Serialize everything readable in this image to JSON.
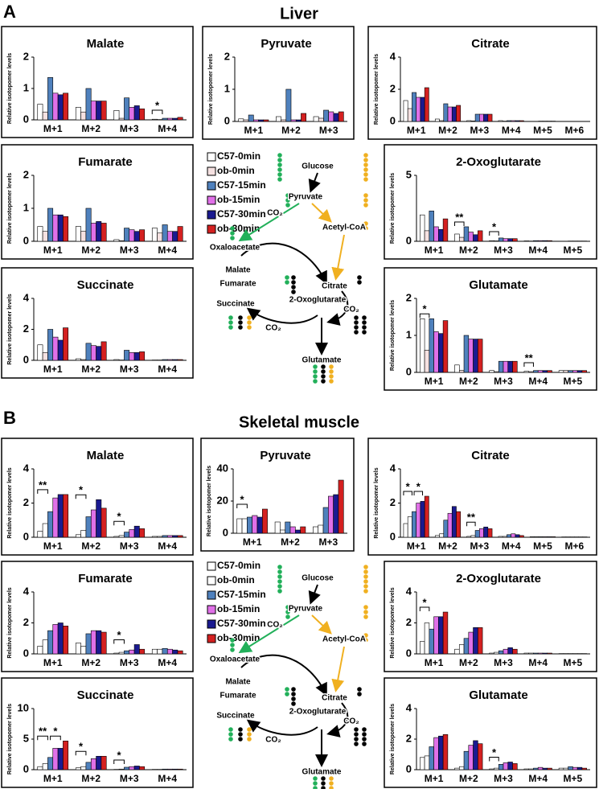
{
  "panels": [
    {
      "label": "A",
      "title": "Liver",
      "legend": [
        {
          "name": "C57-0min",
          "color": "#ffffff"
        },
        {
          "name": "ob-0min",
          "color": "#f5e1e1"
        },
        {
          "name": "C57-15min",
          "color": "#4f81bd"
        },
        {
          "name": "ob-15min",
          "color": "#e070e8"
        },
        {
          "name": "C57-30min",
          "color": "#1a1a90"
        },
        {
          "name": "ob-30min",
          "color": "#d42020"
        }
      ],
      "pathway": [
        "Glucose",
        "Pyruvate",
        "CO₂",
        "Acetyl-CoA",
        "Oxaloacetate",
        "Malate",
        "Citrate",
        "Fumarate",
        "CO₂",
        "2-Oxoglutarate",
        "Succinate",
        "CO₂",
        "Glutamate"
      ]
    },
    {
      "label": "B",
      "title": "Skeletal muscle",
      "legend": [
        {
          "name": "C57-0min",
          "color": "#ffffff"
        },
        {
          "name": "ob-0min",
          "color": "#ffffff"
        },
        {
          "name": "C57-15min",
          "color": "#4f81bd"
        },
        {
          "name": "ob-15min",
          "color": "#e070e8"
        },
        {
          "name": "C57-30min",
          "color": "#1a1a90"
        },
        {
          "name": "ob-30min",
          "color": "#d42020"
        }
      ],
      "pathway": [
        "Glucose",
        "Pyruvate",
        "CO₂",
        "Acetyl-CoA",
        "Oxaloacetate",
        "Malate",
        "Citrate",
        "Fumarate",
        "CO₂",
        "2-Oxoglutarate",
        "Succinate",
        "CO₂",
        "Glutamate"
      ]
    }
  ],
  "chart_data": [
    {
      "type": "bar",
      "title": "Malate",
      "y_label": "Relative isotopomer levels",
      "categories": [
        "M+1",
        "M+2",
        "M+3",
        "M+4"
      ],
      "ylim": [
        0,
        2
      ],
      "yticks": [
        0,
        1,
        2
      ],
      "series": [
        {
          "values": [
            0.5,
            0.4,
            0.3,
            0.02
          ]
        },
        {
          "values": [
            0.25,
            0.25,
            0.05,
            0.01
          ]
        },
        {
          "values": [
            1.35,
            1.0,
            0.7,
            0.05
          ]
        },
        {
          "values": [
            0.85,
            0.6,
            0.4,
            0.05
          ]
        },
        {
          "values": [
            0.8,
            0.6,
            0.45,
            0.05
          ]
        },
        {
          "values": [
            0.85,
            0.6,
            0.35,
            0.08
          ]
        }
      ],
      "annotations": [
        {
          "text": "*",
          "category": "M+4"
        }
      ]
    },
    {
      "type": "bar",
      "title": "Pyruvate",
      "y_label": "Relative isotopomer levels",
      "categories": [
        "M+1",
        "M+2",
        "M+3"
      ],
      "ylim": [
        0,
        2
      ],
      "yticks": [
        0,
        1,
        2
      ],
      "series": [
        {
          "values": [
            0.08,
            0.15,
            0.15
          ]
        },
        {
          "values": [
            0.05,
            0.05,
            0.1
          ]
        },
        {
          "values": [
            0.2,
            1.0,
            0.35
          ]
        },
        {
          "values": [
            0.05,
            0.05,
            0.3
          ]
        },
        {
          "values": [
            0.05,
            0.05,
            0.25
          ]
        },
        {
          "values": [
            0.05,
            0.25,
            0.3
          ]
        }
      ],
      "annotations": []
    },
    {
      "type": "bar",
      "title": "Citrate",
      "y_label": "Relative isotopomer levels",
      "categories": [
        "M+1",
        "M+2",
        "M+3",
        "M+4",
        "M+5",
        "M+6"
      ],
      "ylim": [
        0,
        4
      ],
      "yticks": [
        0,
        2,
        4
      ],
      "series": [
        {
          "values": [
            1.3,
            0.15,
            0.05,
            0.05,
            0.01,
            0.01
          ]
        },
        {
          "values": [
            0.8,
            0.05,
            0.03,
            0.02,
            0.01,
            0.01
          ]
        },
        {
          "values": [
            1.8,
            1.1,
            0.45,
            0.05,
            0.02,
            0.01
          ]
        },
        {
          "values": [
            1.5,
            0.9,
            0.45,
            0.05,
            0.02,
            0.01
          ]
        },
        {
          "values": [
            1.5,
            0.9,
            0.45,
            0.05,
            0.02,
            0.01
          ]
        },
        {
          "values": [
            2.1,
            1.0,
            0.45,
            0.05,
            0.02,
            0.01
          ]
        }
      ],
      "annotations": []
    },
    {
      "type": "bar",
      "title": "Fumarate",
      "y_label": "Relative isotopomer levels",
      "categories": [
        "M+1",
        "M+2",
        "M+3",
        "M+4"
      ],
      "ylim": [
        0,
        2
      ],
      "yticks": [
        0,
        1,
        2
      ],
      "series": [
        {
          "values": [
            0.45,
            0.45,
            0.05,
            0.4
          ]
        },
        {
          "values": [
            0.3,
            0.3,
            0.02,
            0.25
          ]
        },
        {
          "values": [
            1.0,
            1.0,
            0.4,
            0.5
          ]
        },
        {
          "values": [
            0.8,
            0.55,
            0.35,
            0.3
          ]
        },
        {
          "values": [
            0.8,
            0.6,
            0.3,
            0.3
          ]
        },
        {
          "values": [
            0.75,
            0.55,
            0.35,
            0.45
          ]
        }
      ],
      "annotations": []
    },
    {
      "type": "bar",
      "title": "2-Oxoglutarate",
      "y_label": "Relative isotopomer levels",
      "categories": [
        "M+1",
        "M+2",
        "M+3",
        "M+4",
        "M+5"
      ],
      "ylim": [
        0,
        5
      ],
      "yticks": [
        0,
        5
      ],
      "series": [
        {
          "values": [
            2.0,
            0.55,
            0.05,
            0.03,
            0.01
          ]
        },
        {
          "values": [
            0.8,
            0.3,
            0.03,
            0.02,
            0.01
          ]
        },
        {
          "values": [
            2.3,
            1.1,
            0.25,
            0.05,
            0.02
          ]
        },
        {
          "values": [
            1.1,
            0.7,
            0.2,
            0.05,
            0.02
          ]
        },
        {
          "values": [
            0.9,
            0.5,
            0.2,
            0.05,
            0.02
          ]
        },
        {
          "values": [
            1.7,
            0.8,
            0.2,
            0.05,
            0.02
          ]
        }
      ],
      "annotations": [
        {
          "text": "**",
          "category": "M+2"
        },
        {
          "text": "*",
          "category": "M+3"
        }
      ]
    },
    {
      "type": "bar",
      "title": "Succinate",
      "y_label": "Relative isotopomer levels",
      "categories": [
        "M+1",
        "M+2",
        "M+3",
        "M+4"
      ],
      "ylim": [
        0,
        4
      ],
      "yticks": [
        0,
        2,
        4
      ],
      "series": [
        {
          "values": [
            1.0,
            0.1,
            0.05,
            0.02
          ]
        },
        {
          "values": [
            0.5,
            0.05,
            0.02,
            0.02
          ]
        },
        {
          "values": [
            2.0,
            1.1,
            0.65,
            0.05
          ]
        },
        {
          "values": [
            1.5,
            0.95,
            0.5,
            0.05
          ]
        },
        {
          "values": [
            1.3,
            0.9,
            0.5,
            0.05
          ]
        },
        {
          "values": [
            2.1,
            1.2,
            0.55,
            0.05
          ]
        }
      ],
      "annotations": []
    },
    {
      "type": "bar",
      "title": "Glutamate",
      "y_label": "Relative isotopomer levels",
      "categories": [
        "M+1",
        "M+2",
        "M+3",
        "M+4",
        "M+5"
      ],
      "ylim": [
        0,
        2
      ],
      "yticks": [
        0,
        1,
        2
      ],
      "series": [
        {
          "values": [
            1.45,
            0.2,
            0.05,
            0.03,
            0.05
          ]
        },
        {
          "values": [
            0.6,
            0.05,
            0.02,
            0.02,
            0.05
          ]
        },
        {
          "values": [
            1.45,
            1.0,
            0.3,
            0.05,
            0.05
          ]
        },
        {
          "values": [
            1.1,
            0.9,
            0.3,
            0.05,
            0.05
          ]
        },
        {
          "values": [
            1.05,
            0.9,
            0.3,
            0.05,
            0.05
          ]
        },
        {
          "values": [
            1.4,
            0.9,
            0.3,
            0.05,
            0.05
          ]
        }
      ],
      "annotations": [
        {
          "text": "*",
          "category": "M+1"
        },
        {
          "text": "**",
          "category": "M+4"
        }
      ]
    },
    {
      "type": "bar",
      "title": "Malate",
      "y_label": "Relative isotopomer levels",
      "categories": [
        "M+1",
        "M+2",
        "M+3",
        "M+4"
      ],
      "ylim": [
        0,
        4
      ],
      "yticks": [
        0,
        2,
        4
      ],
      "series": [
        {
          "values": [
            0.35,
            0.15,
            0.05,
            0.05
          ]
        },
        {
          "values": [
            0.8,
            0.4,
            0.1,
            0.05
          ]
        },
        {
          "values": [
            1.5,
            1.2,
            0.3,
            0.1
          ]
        },
        {
          "values": [
            2.3,
            1.6,
            0.45,
            0.1
          ]
        },
        {
          "values": [
            2.5,
            2.2,
            0.65,
            0.1
          ]
        },
        {
          "values": [
            2.5,
            1.7,
            0.5,
            0.1
          ]
        }
      ],
      "annotations": [
        {
          "text": "**",
          "category": "M+1"
        },
        {
          "text": "*",
          "category": "M+2"
        },
        {
          "text": "*",
          "category": "M+3"
        }
      ]
    },
    {
      "type": "bar",
      "title": "Pyruvate",
      "y_label": "Relative isotopomer levels",
      "categories": [
        "M+1",
        "M+2",
        "M+3"
      ],
      "ylim": [
        0,
        40
      ],
      "yticks": [
        0,
        20,
        40
      ],
      "series": [
        {
          "values": [
            9,
            7,
            4
          ]
        },
        {
          "values": [
            9,
            2,
            5
          ]
        },
        {
          "values": [
            10,
            7,
            16
          ]
        },
        {
          "values": [
            11,
            4,
            23
          ]
        },
        {
          "values": [
            10,
            2,
            24
          ]
        },
        {
          "values": [
            15,
            4,
            33
          ]
        }
      ],
      "annotations": [
        {
          "text": "*",
          "category": "M+1"
        }
      ]
    },
    {
      "type": "bar",
      "title": "Citrate",
      "y_label": "Relative isotopomer levels",
      "categories": [
        "M+1",
        "M+2",
        "M+3",
        "M+4",
        "M+5",
        "M+6"
      ],
      "ylim": [
        0,
        4
      ],
      "yticks": [
        0,
        2,
        4
      ],
      "series": [
        {
          "values": [
            0.8,
            0.1,
            0.05,
            0.05,
            0.03,
            0.02
          ]
        },
        {
          "values": [
            1.2,
            0.2,
            0.1,
            0.05,
            0.03,
            0.02
          ]
        },
        {
          "values": [
            1.5,
            1.0,
            0.4,
            0.15,
            0.03,
            0.02
          ]
        },
        {
          "values": [
            2.0,
            1.4,
            0.5,
            0.2,
            0.03,
            0.02
          ]
        },
        {
          "values": [
            2.1,
            1.8,
            0.6,
            0.15,
            0.03,
            0.02
          ]
        },
        {
          "values": [
            2.4,
            1.5,
            0.5,
            0.1,
            0.03,
            0.02
          ]
        }
      ],
      "annotations": [
        {
          "text": "*",
          "category": "M+1"
        },
        {
          "text": "*",
          "category": "M+1"
        },
        {
          "text": "**",
          "category": "M+3"
        }
      ]
    },
    {
      "type": "bar",
      "title": "Fumarate",
      "y_label": "Relative isotopomer levels",
      "categories": [
        "M+1",
        "M+2",
        "M+3",
        "M+4"
      ],
      "ylim": [
        0,
        4
      ],
      "yticks": [
        0,
        2,
        4
      ],
      "series": [
        {
          "values": [
            0.5,
            0.7,
            0.05,
            0.3
          ]
        },
        {
          "values": [
            0.9,
            0.5,
            0.1,
            0.3
          ]
        },
        {
          "values": [
            1.5,
            1.3,
            0.2,
            0.35
          ]
        },
        {
          "values": [
            1.9,
            1.5,
            0.25,
            0.3
          ]
        },
        {
          "values": [
            2.0,
            1.5,
            0.6,
            0.25
          ]
        },
        {
          "values": [
            1.8,
            1.4,
            0.3,
            0.2
          ]
        }
      ],
      "annotations": [
        {
          "text": "*",
          "category": "M+3"
        }
      ]
    },
    {
      "type": "bar",
      "title": "2-Oxoglutarate",
      "y_label": "Relative isotopomer levels",
      "categories": [
        "M+1",
        "M+2",
        "M+3",
        "M+4",
        "M+5"
      ],
      "ylim": [
        0,
        4
      ],
      "yticks": [
        0,
        2,
        4
      ],
      "series": [
        {
          "values": [
            0.8,
            0.3,
            0.05,
            0.05,
            0.02
          ]
        },
        {
          "values": [
            2.0,
            0.6,
            0.1,
            0.05,
            0.02
          ]
        },
        {
          "values": [
            1.6,
            1.0,
            0.2,
            0.05,
            0.02
          ]
        },
        {
          "values": [
            2.4,
            1.4,
            0.3,
            0.05,
            0.02
          ]
        },
        {
          "values": [
            2.4,
            1.7,
            0.4,
            0.05,
            0.02
          ]
        },
        {
          "values": [
            2.7,
            1.7,
            0.3,
            0.05,
            0.02
          ]
        }
      ],
      "annotations": [
        {
          "text": "*",
          "category": "M+1"
        }
      ]
    },
    {
      "type": "bar",
      "title": "Succinate",
      "y_label": "Relative isotopomer levels",
      "categories": [
        "M+1",
        "M+2",
        "M+3",
        "M+4"
      ],
      "ylim": [
        0,
        10
      ],
      "yticks": [
        0,
        5,
        10
      ],
      "series": [
        {
          "values": [
            0.5,
            0.3,
            0.05,
            0.05
          ]
        },
        {
          "values": [
            1.0,
            0.5,
            0.1,
            0.05
          ]
        },
        {
          "values": [
            2.0,
            1.2,
            0.4,
            0.1
          ]
        },
        {
          "values": [
            3.5,
            1.8,
            0.5,
            0.1
          ]
        },
        {
          "values": [
            3.5,
            2.2,
            0.6,
            0.1
          ]
        },
        {
          "values": [
            4.7,
            2.2,
            0.5,
            0.1
          ]
        }
      ],
      "annotations": [
        {
          "text": "**",
          "category": "M+1"
        },
        {
          "text": "*",
          "category": "M+1"
        },
        {
          "text": "*",
          "category": "M+2"
        },
        {
          "text": "*",
          "category": "M+3"
        }
      ]
    },
    {
      "type": "bar",
      "title": "Glutamate",
      "y_label": "Relative isotopomer levels",
      "categories": [
        "M+1",
        "M+2",
        "M+3",
        "M+4",
        "M+5"
      ],
      "ylim": [
        0,
        4
      ],
      "yticks": [
        0,
        2,
        4
      ],
      "series": [
        {
          "values": [
            0.8,
            0.1,
            0.05,
            0.05,
            0.1
          ]
        },
        {
          "values": [
            0.9,
            0.2,
            0.1,
            0.05,
            0.1
          ]
        },
        {
          "values": [
            1.5,
            1.2,
            0.35,
            0.1,
            0.2
          ]
        },
        {
          "values": [
            2.1,
            1.6,
            0.45,
            0.15,
            0.15
          ]
        },
        {
          "values": [
            2.2,
            1.9,
            0.5,
            0.1,
            0.15
          ]
        },
        {
          "values": [
            2.3,
            1.7,
            0.4,
            0.1,
            0.1
          ]
        }
      ],
      "annotations": [
        {
          "text": "*",
          "category": "M+3"
        }
      ]
    }
  ]
}
